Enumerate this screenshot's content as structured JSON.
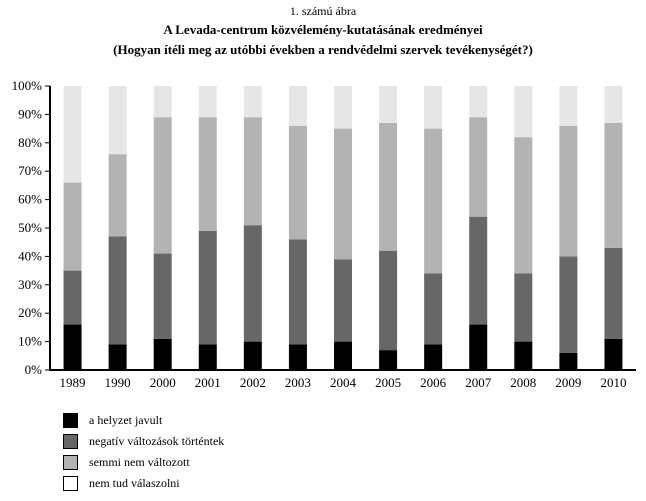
{
  "figure": {
    "caption": "1. számú ábra",
    "title_line1": "A Levada-centrum közvélemény-kutatásának eredményei",
    "title_line2": "(Hogyan ítéli meg az utóbbi években a rendvédelmi szervek tevékenységét?)"
  },
  "colors": {
    "series": [
      "#000000",
      "#676767",
      "#b3b3b3",
      "#e6e6e6"
    ],
    "legend_swatches": [
      "#000000",
      "#676767",
      "#b3b3b3",
      "#ffffff"
    ]
  },
  "chart_data": {
    "type": "bar",
    "stacked": true,
    "categories": [
      "1989",
      "1990",
      "2000",
      "2001",
      "2002",
      "2003",
      "2004",
      "2005",
      "2006",
      "2007",
      "2008",
      "2009",
      "2010"
    ],
    "series": [
      {
        "name": "a helyzet javult",
        "values": [
          16,
          9,
          11,
          9,
          10,
          9,
          10,
          7,
          9,
          16,
          10,
          6,
          11
        ]
      },
      {
        "name": "negatív változások történtek",
        "values": [
          19,
          38,
          30,
          40,
          41,
          37,
          29,
          35,
          25,
          38,
          24,
          34,
          32
        ]
      },
      {
        "name": "semmi nem változott",
        "values": [
          31,
          29,
          48,
          40,
          38,
          40,
          46,
          45,
          51,
          35,
          48,
          46,
          44
        ]
      },
      {
        "name": "nem tud válaszolni",
        "values": [
          34,
          24,
          11,
          11,
          11,
          14,
          15,
          13,
          15,
          11,
          18,
          14,
          13
        ]
      }
    ],
    "ylim": [
      0,
      100
    ],
    "yticks": [
      "0%",
      "10%",
      "20%",
      "30%",
      "40%",
      "50%",
      "60%",
      "70%",
      "80%",
      "90%",
      "100%"
    ],
    "grid": false,
    "legend_position": "bottom-left"
  }
}
